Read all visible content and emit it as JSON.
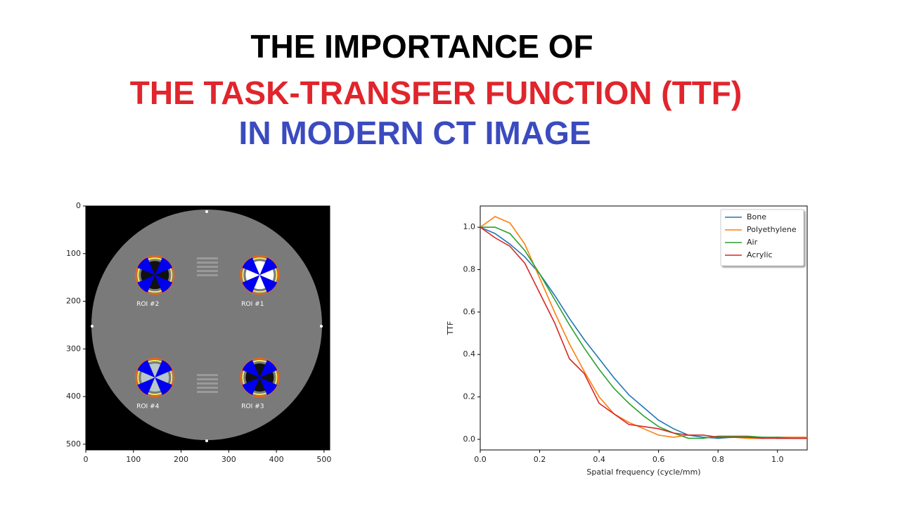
{
  "header": {
    "title_lines": [
      "THE IMPORTANCE OF",
      "THE TASK-TRANSFER FUNCTION (TTF)",
      "IN MODERN CT IMAGE"
    ]
  },
  "chart_data": [
    {
      "type": "image",
      "xlim": [
        0,
        512
      ],
      "ylim": [
        512,
        0
      ],
      "xticks": [
        0,
        100,
        200,
        300,
        400,
        500
      ],
      "yticks": [
        0,
        100,
        200,
        300,
        400,
        500
      ],
      "rois": [
        {
          "label": "ROI #1",
          "x": 365,
          "y": 145
        },
        {
          "label": "ROI #2",
          "x": 145,
          "y": 145
        },
        {
          "label": "ROI #3",
          "x": 365,
          "y": 360
        },
        {
          "label": "ROI #4",
          "x": 145,
          "y": 360
        }
      ]
    },
    {
      "type": "line",
      "xlabel": "Spatial frequency (cycle/mm)",
      "ylabel": "TTF",
      "xlim": [
        0,
        1.1
      ],
      "ylim": [
        -0.05,
        1.1
      ],
      "xticks": [
        {
          "value": 0,
          "label": "0.0"
        },
        0.2,
        0.4,
        0.6,
        0.8,
        {
          "value": 1,
          "label": "1.0"
        }
      ],
      "yticks": [
        {
          "value": 0,
          "label": "0.0"
        },
        0.2,
        0.4,
        0.6,
        0.8,
        {
          "value": 1,
          "label": "1.0"
        }
      ],
      "legend": "upper right",
      "x": [
        0,
        0.05,
        0.1,
        0.15,
        0.2,
        0.25,
        0.3,
        0.35,
        0.4,
        0.45,
        0.5,
        0.55,
        0.6,
        0.65,
        0.7,
        0.75,
        0.8,
        0.85,
        0.9,
        0.95,
        1.0,
        1.05,
        1.1
      ],
      "series": [
        {
          "name": "Bone",
          "color": "#1f77b4",
          "values": [
            1.0,
            0.97,
            0.92,
            0.86,
            0.78,
            0.68,
            0.57,
            0.47,
            0.38,
            0.29,
            0.21,
            0.15,
            0.09,
            0.05,
            0.02,
            0.01,
            0.005,
            0.01,
            0.01,
            0.01,
            0.005,
            0.005,
            0.005
          ]
        },
        {
          "name": "Polyethylene",
          "color": "#ff7f0e",
          "values": [
            1.0,
            1.05,
            1.02,
            0.92,
            0.76,
            0.6,
            0.45,
            0.32,
            0.2,
            0.12,
            0.08,
            0.05,
            0.02,
            0.01,
            0.02,
            0.02,
            0.01,
            0.01,
            0.005,
            0.005,
            0.01,
            0.01,
            0.01
          ]
        },
        {
          "name": "Air",
          "color": "#2ca02c",
          "values": [
            1.0,
            1.0,
            0.97,
            0.89,
            0.78,
            0.66,
            0.54,
            0.43,
            0.33,
            0.24,
            0.17,
            0.11,
            0.06,
            0.03,
            0.005,
            0.005,
            0.015,
            0.015,
            0.015,
            0.01,
            0.01,
            0.005,
            0.005
          ]
        },
        {
          "name": "Acrylic",
          "color": "#d62728",
          "values": [
            1.0,
            0.95,
            0.91,
            0.83,
            0.69,
            0.55,
            0.38,
            0.31,
            0.17,
            0.12,
            0.07,
            0.06,
            0.05,
            0.03,
            0.02,
            0.02,
            0.01,
            0.01,
            0.01,
            0.005,
            0.005,
            0.005,
            0.005
          ]
        }
      ]
    }
  ]
}
